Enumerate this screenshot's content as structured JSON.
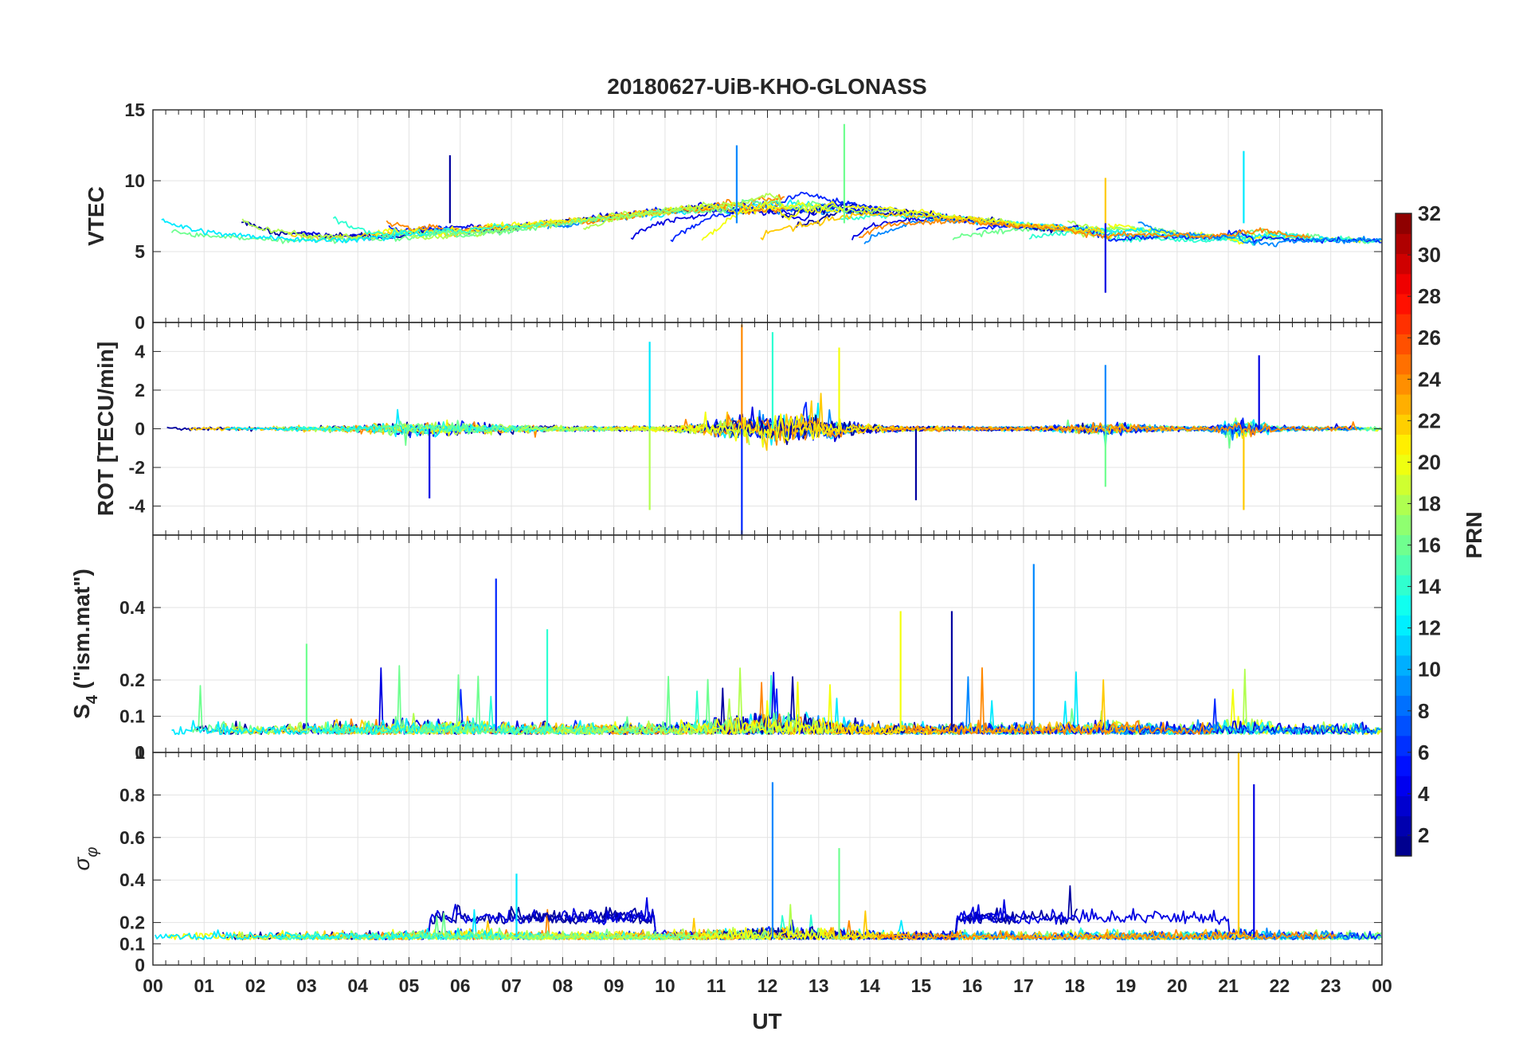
{
  "chart_data": {
    "type": "line",
    "title": "20180627-UiB-KHO-GLONASS",
    "xlabel": "UT",
    "x_ticks": [
      "00",
      "01",
      "02",
      "03",
      "04",
      "05",
      "06",
      "07",
      "08",
      "09",
      "10",
      "11",
      "12",
      "13",
      "14",
      "15",
      "16",
      "17",
      "18",
      "19",
      "20",
      "21",
      "22",
      "23",
      "00"
    ],
    "x_range_hours": [
      0,
      24
    ],
    "panels": [
      {
        "id": "vtec",
        "ylabel": "VTEC",
        "ylim": [
          0,
          15
        ],
        "yticks": [
          0,
          5,
          10,
          15
        ],
        "ytick_labels": [
          "0",
          "5",
          "10",
          "15"
        ],
        "kind": "vtec",
        "markers": [
          {
            "x": 5.8,
            "y": 11.8
          },
          {
            "x": 11.4,
            "y": 12.5
          },
          {
            "x": 13.5,
            "y": 14.0
          },
          {
            "x": 18.6,
            "y": 10.2
          },
          {
            "x": 18.6,
            "y": 2.1
          },
          {
            "x": 21.3,
            "y": 12.1
          }
        ]
      },
      {
        "id": "rot",
        "ylabel": "ROT [TECU/min]",
        "ylim": [
          -5.5,
          5.5
        ],
        "yticks": [
          -4,
          -2,
          0,
          2,
          4
        ],
        "ytick_labels": [
          "-4",
          "-2",
          "0",
          "2",
          "4"
        ],
        "kind": "rot",
        "markers": [
          {
            "x": 5.4,
            "y": -3.6
          },
          {
            "x": 9.7,
            "y": 4.5
          },
          {
            "x": 9.7,
            "y": -4.2
          },
          {
            "x": 11.5,
            "y": 5.4
          },
          {
            "x": 11.5,
            "y": -5.5
          },
          {
            "x": 12.1,
            "y": 5.0
          },
          {
            "x": 13.4,
            "y": 4.2
          },
          {
            "x": 14.9,
            "y": -3.7
          },
          {
            "x": 18.6,
            "y": 3.3
          },
          {
            "x": 18.6,
            "y": -3.0
          },
          {
            "x": 21.3,
            "y": -4.2
          },
          {
            "x": 21.6,
            "y": 3.8
          }
        ]
      },
      {
        "id": "s4",
        "ylabel": "S4 (\"ism.mat\")",
        "ylabel_main": "S",
        "ylabel_sub": "4",
        "ylabel_rest": " (\"ism.mat\")",
        "ylim": [
          0,
          0.6
        ],
        "yticks": [
          0,
          0.1,
          0.2,
          0.4
        ],
        "ytick_labels": [
          "0",
          "0.1",
          "0.2",
          "0.4"
        ],
        "kind": "s4",
        "markers": [
          {
            "x": 6.7,
            "y": 0.48
          },
          {
            "x": 7.7,
            "y": 0.34
          },
          {
            "x": 14.6,
            "y": 0.39
          },
          {
            "x": 15.6,
            "y": 0.39
          },
          {
            "x": 17.2,
            "y": 0.52
          },
          {
            "x": 3.0,
            "y": 0.3
          }
        ]
      },
      {
        "id": "sigma_phi",
        "ylabel": "σφ",
        "ylabel_main": "σ",
        "ylabel_sub": "φ",
        "ylim": [
          0,
          1.0
        ],
        "yticks": [
          0,
          0.1,
          0.2,
          0.4,
          0.6,
          0.8,
          1.0
        ],
        "ytick_labels": [
          "0",
          "0.1",
          "0.2",
          "0.4",
          "0.6",
          "0.8",
          "1"
        ],
        "kind": "sigma",
        "markers": [
          {
            "x": 12.1,
            "y": 0.86
          },
          {
            "x": 13.4,
            "y": 0.55
          },
          {
            "x": 21.2,
            "y": 1.0
          },
          {
            "x": 21.5,
            "y": 0.85
          },
          {
            "x": 7.1,
            "y": 0.43
          }
        ]
      }
    ],
    "colorbar": {
      "label": "PRN",
      "range": [
        1,
        32
      ],
      "ticks": [
        2,
        4,
        6,
        8,
        10,
        12,
        14,
        16,
        18,
        20,
        22,
        24,
        26,
        28,
        30,
        32
      ],
      "colormap": "jet"
    },
    "series_prn": [
      2,
      4,
      6,
      9,
      12,
      14,
      16,
      18,
      20,
      22,
      24
    ],
    "colors": {
      "frame": "#262626",
      "grid": "#e3e3e3"
    }
  }
}
